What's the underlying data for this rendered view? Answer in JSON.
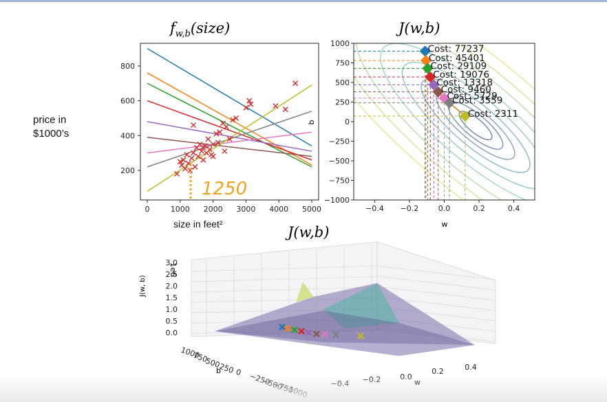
{
  "page": {
    "side_label": "price in\n$1000’s",
    "xlabel_left": "size in feet²",
    "annotation_1250": "1250"
  },
  "colors": {
    "cross": "#d62728",
    "annotation": "#f0a31c",
    "series": [
      "#1f77b4",
      "#ff7f0e",
      "#2ca02c",
      "#d62728",
      "#9467bd",
      "#8c564b",
      "#e377c2",
      "#7f7f7f",
      "#bcbd22"
    ]
  },
  "chart_data": [
    {
      "type": "scatter",
      "title_main": "f",
      "title_sub": "w,b",
      "title_arg": "(size)",
      "xlim": [
        0,
        5000
      ],
      "ylim": [
        30,
        930
      ],
      "xticks": [
        "0",
        "1000",
        "2000",
        "3000",
        "4000",
        "5000"
      ],
      "yticks": [
        "200",
        "400",
        "600",
        "800"
      ],
      "points": [
        [
          900,
          180
        ],
        [
          1000,
          250
        ],
        [
          1050,
          230
        ],
        [
          1100,
          260
        ],
        [
          1150,
          210
        ],
        [
          1200,
          290
        ],
        [
          1250,
          240
        ],
        [
          1300,
          200
        ],
        [
          1350,
          270
        ],
        [
          1400,
          300
        ],
        [
          1450,
          220
        ],
        [
          1500,
          330
        ],
        [
          1550,
          280
        ],
        [
          1600,
          350
        ],
        [
          1650,
          310
        ],
        [
          1700,
          260
        ],
        [
          1750,
          340
        ],
        [
          1800,
          300
        ],
        [
          1850,
          380
        ],
        [
          1900,
          320
        ],
        [
          1950,
          290
        ],
        [
          2000,
          350
        ],
        [
          2100,
          410
        ],
        [
          2150,
          360
        ],
        [
          2200,
          420
        ],
        [
          2300,
          470
        ],
        [
          2350,
          310
        ],
        [
          2400,
          450
        ],
        [
          2500,
          380
        ],
        [
          2600,
          490
        ],
        [
          2700,
          500
        ],
        [
          3000,
          560
        ],
        [
          3100,
          600
        ],
        [
          3150,
          580
        ],
        [
          3900,
          570
        ],
        [
          4200,
          550
        ],
        [
          4500,
          700
        ],
        [
          1400,
          460
        ],
        [
          1700,
          330
        ],
        [
          2000,
          280
        ]
      ],
      "lines": [
        {
          "x1": 0,
          "y1": 900,
          "x2": 5000,
          "y2": 340
        },
        {
          "x1": 0,
          "y1": 760,
          "x2": 5000,
          "y2": 230
        },
        {
          "x1": 0,
          "y1": 700,
          "x2": 5000,
          "y2": 220
        },
        {
          "x1": 0,
          "y1": 600,
          "x2": 5000,
          "y2": 260
        },
        {
          "x1": 0,
          "y1": 480,
          "x2": 5000,
          "y2": 310
        },
        {
          "x1": 0,
          "y1": 390,
          "x2": 5000,
          "y2": 280
        },
        {
          "x1": 0,
          "y1": 300,
          "x2": 5000,
          "y2": 420
        },
        {
          "x1": 0,
          "y1": 220,
          "x2": 5000,
          "y2": 540
        },
        {
          "x1": 0,
          "y1": 80,
          "x2": 5000,
          "y2": 690
        }
      ]
    },
    {
      "type": "line",
      "title": "J(w,b)",
      "xlabel": "w",
      "ylabel": "b",
      "xlim": [
        -0.52,
        0.52
      ],
      "ylim": [
        -1000,
        1000
      ],
      "xticks": [
        "−0.4",
        "−0.2",
        "0.0",
        "0.2",
        "0.4"
      ],
      "yticks": [
        "1000",
        "750",
        "500",
        "250",
        "0",
        "−250",
        "−500",
        "−750",
        "−1000"
      ],
      "path_points": [
        [
          -0.11,
          900
        ],
        [
          -0.105,
          780
        ],
        [
          -0.095,
          680
        ],
        [
          -0.08,
          570
        ],
        [
          -0.06,
          470
        ],
        [
          -0.035,
          380
        ],
        [
          0.0,
          300
        ],
        [
          0.03,
          240
        ],
        [
          0.12,
          70
        ]
      ],
      "costs": [
        "Cost: 77237",
        "Cost: 45401",
        "Cost: 29109",
        "Cost: 19076",
        "Cost: 13318",
        "Cost: 9460",
        "Cost: 5729",
        "Cost: 3559",
        "Cost: 2311"
      ]
    },
    {
      "type": "area",
      "title": "J(w,b)",
      "xlabel": "w",
      "ylabel": "b",
      "zlabel": "J(w, b)",
      "zscale": "1e6",
      "zticks": [
        "3.0",
        "2.5",
        "2.0",
        "1.5",
        "1.0",
        "0.5",
        "0.0"
      ],
      "xticks": [
        "−0.4",
        "−0.2",
        "0.0",
        "0.2",
        "0.4"
      ],
      "yticks": [
        "1000",
        "750",
        "500",
        "250",
        "0",
        "−250",
        "−500",
        "−750",
        "−1000"
      ]
    }
  ]
}
